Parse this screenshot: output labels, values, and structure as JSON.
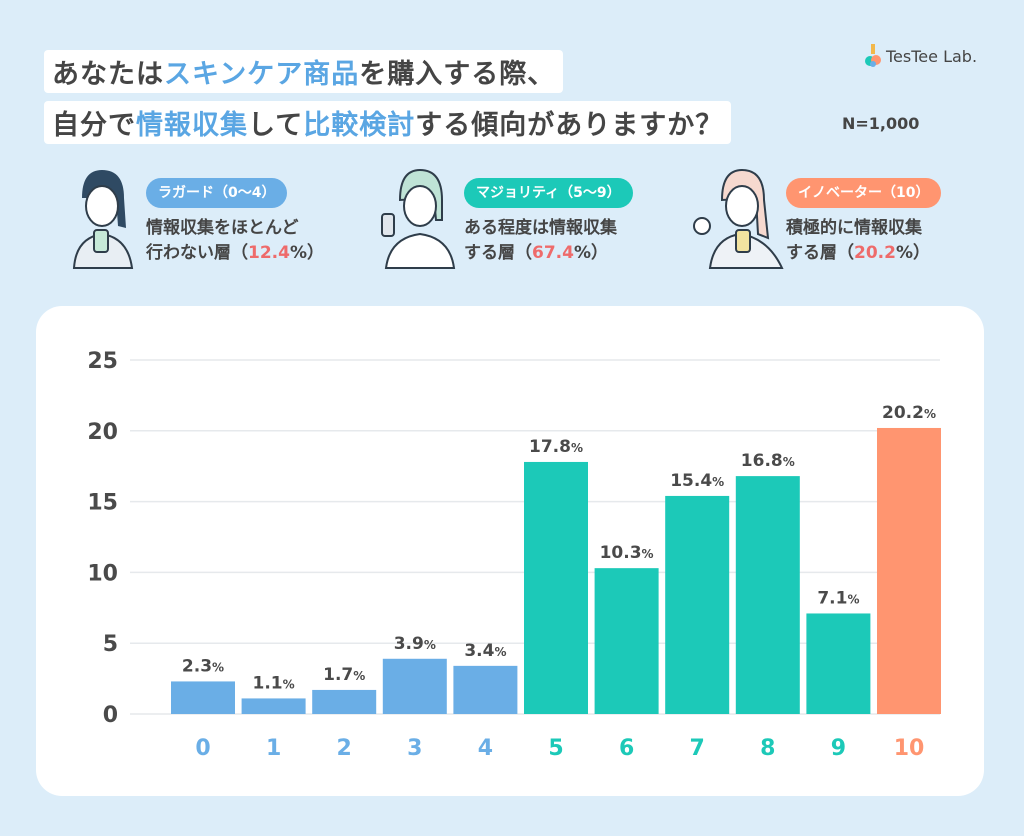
{
  "title": {
    "line1": [
      "あなたは",
      "スキンケア商品",
      "を購入する際、"
    ],
    "line2": [
      "自分で",
      "情報収集",
      "して",
      "比較検討",
      "する傾向がありますか？"
    ],
    "sample": "N=1,000"
  },
  "logo": {
    "text": "TesTee Lab."
  },
  "groups": [
    {
      "badge": "ラガード（0〜4）",
      "color": "#6aaee6",
      "desc1": "情報収集をほとんど",
      "desc2_pre": "行わない層（",
      "pct": "12.4",
      "desc2_post": "%）"
    },
    {
      "badge": "マジョリティ（5〜9）",
      "color": "#1cc9b8",
      "desc1": "ある程度は情報収集",
      "desc2_pre": "する層（",
      "pct": "67.4",
      "desc2_post": "%）"
    },
    {
      "badge": "イノベーター（10）",
      "color": "#ff9570",
      "desc1": "積極的に情報収集",
      "desc2_pre": "する層（",
      "pct": "20.2",
      "desc2_post": "%）"
    }
  ],
  "chart_data": {
    "type": "bar",
    "categories": [
      "0",
      "1",
      "2",
      "3",
      "4",
      "5",
      "6",
      "7",
      "8",
      "9",
      "10"
    ],
    "values": [
      2.3,
      1.1,
      1.7,
      3.9,
      3.4,
      17.8,
      10.3,
      15.4,
      16.8,
      7.1,
      20.2
    ],
    "value_suffix": "%",
    "ylim": [
      0,
      25
    ],
    "yticks": [
      0,
      5,
      10,
      15,
      20,
      25
    ],
    "grid": true,
    "colors": [
      "#6aaee6",
      "#6aaee6",
      "#6aaee6",
      "#6aaee6",
      "#6aaee6",
      "#1cc9b8",
      "#1cc9b8",
      "#1cc9b8",
      "#1cc9b8",
      "#1cc9b8",
      "#ff9570"
    ]
  }
}
